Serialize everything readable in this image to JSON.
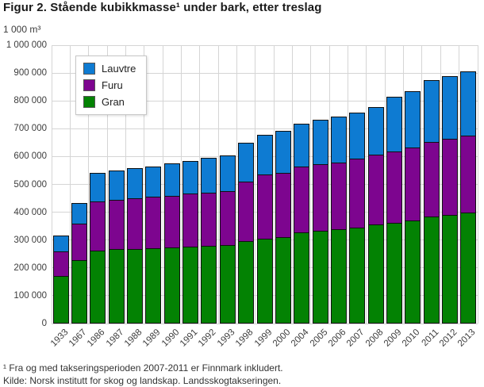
{
  "header": {
    "title": "Figur 2. Stående kubikkmasse¹ under bark, etter treslag",
    "units_label": "1 000 m³"
  },
  "legend": {
    "items": [
      {
        "label": "Lauvtre",
        "color": "#0e7bd2"
      },
      {
        "label": "Furu",
        "color": "#7d058f"
      },
      {
        "label": "Gran",
        "color": "#038203"
      }
    ]
  },
  "chart_data": {
    "type": "bar",
    "stacked": true,
    "title": "Figur 2. Stående kubikkmasse¹ under bark, etter treslag",
    "ylabel": "1 000 m³",
    "ylim": [
      0,
      1000000
    ],
    "ytick_step": 100000,
    "ytick_labels": [
      "0",
      "100 000",
      "200 000",
      "300 000",
      "400 000",
      "500 000",
      "600 000",
      "700 000",
      "800 000",
      "900 000",
      "1 000 000"
    ],
    "grid": true,
    "legend_position": "top-left",
    "categories": [
      "1933",
      "1967",
      "1986",
      "1987",
      "1988",
      "1989",
      "1990",
      "1991",
      "1992",
      "1993",
      "1998",
      "1999",
      "2000",
      "2004",
      "2005",
      "2006",
      "2007",
      "2008",
      "2009",
      "2010",
      "2011",
      "2012",
      "2013"
    ],
    "series": [
      {
        "name": "Gran",
        "color": "#038203",
        "values": [
          171000,
          228000,
          263000,
          267000,
          269000,
          271000,
          274000,
          277000,
          279000,
          282000,
          296000,
          305000,
          310000,
          329000,
          334000,
          339000,
          346000,
          356000,
          362000,
          370000,
          386000,
          391000,
          400000
        ]
      },
      {
        "name": "Furu",
        "color": "#7d058f",
        "values": [
          92000,
          134000,
          180000,
          179000,
          185000,
          188000,
          188000,
          192000,
          194000,
          197000,
          218000,
          233000,
          234000,
          237000,
          242000,
          243000,
          249000,
          253000,
          259000,
          265000,
          268000,
          275000,
          278000
        ]
      },
      {
        "name": "Lauvtre",
        "color": "#0e7bd2",
        "values": [
          60000,
          76000,
          103000,
          109000,
          109000,
          112000,
          118000,
          121000,
          128000,
          130000,
          140000,
          147000,
          155000,
          157000,
          161000,
          167000,
          170000,
          174000,
          201000,
          206000,
          225000,
          228000,
          235000
        ]
      }
    ]
  },
  "footnotes": {
    "note1": "¹ Fra og med takseringsperioden 2007-2011 er Finnmark inkludert.",
    "source": "Kilde: Norsk institutt for skog og landskap. Landsskogtakseringen."
  }
}
